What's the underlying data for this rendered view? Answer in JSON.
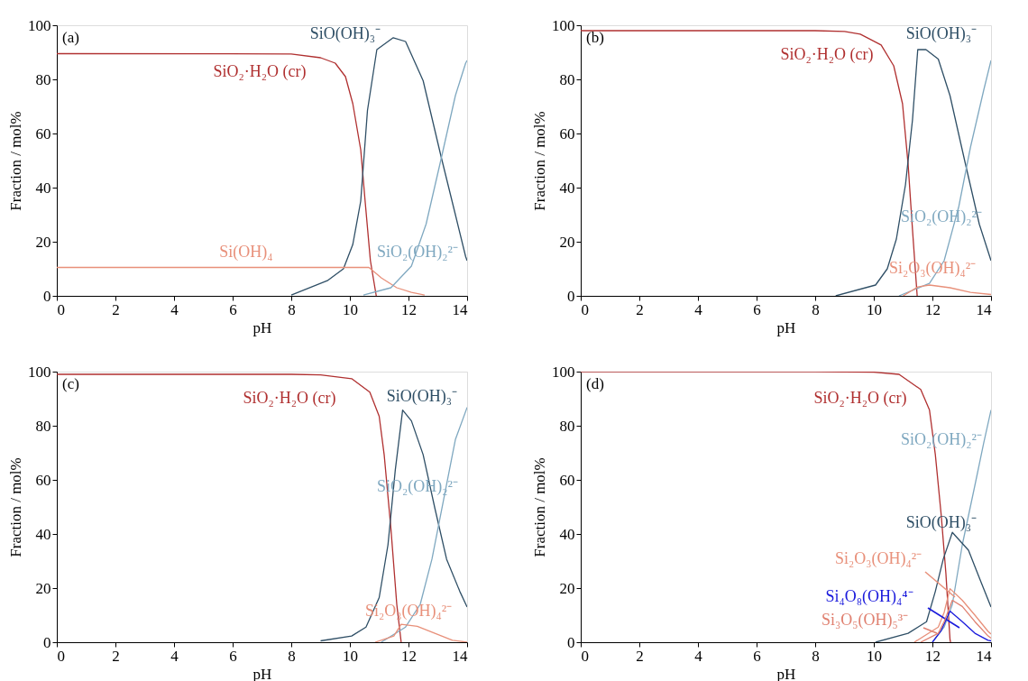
{
  "chart_data": [
    {
      "type": "line",
      "xlabel": "pH",
      "ylabel": "Fraction / mol%",
      "xlim": [
        0,
        14
      ],
      "ylim": [
        0,
        100
      ],
      "xticks": [
        0,
        2,
        4,
        6,
        8,
        10,
        12,
        14
      ],
      "yticks": [
        0,
        20,
        40,
        60,
        80,
        100
      ],
      "grid": false,
      "annotations": [
        "(a)"
      ],
      "series": [
        {
          "name": "SiO₂·H₂O (cr)",
          "color": "#b03030",
          "x": [
            0,
            8,
            9,
            9.5,
            9.85,
            10.1,
            10.37,
            10.52,
            10.7,
            10.9
          ],
          "values": [
            89.5,
            89.4,
            88,
            86,
            81,
            71,
            54,
            35,
            13,
            0
          ]
        },
        {
          "name": "SiO(OH)₃⁻",
          "color": "#2f4f66",
          "x": [
            8,
            9.23,
            9.78,
            10.1,
            10.37,
            10.6,
            10.92,
            11.48,
            11.9,
            12.5,
            13.1,
            13.6,
            13.95,
            14
          ],
          "values": [
            0.3,
            5.6,
            10,
            19,
            35,
            68.5,
            91,
            95.4,
            94,
            79.5,
            52,
            30,
            14.5,
            13
          ]
        },
        {
          "name": "Si(OH)₄",
          "color": "#e8907a",
          "x": [
            0,
            10.65,
            11.08,
            11.6,
            12.1,
            12.55
          ],
          "values": [
            10.5,
            10.5,
            6.6,
            3,
            1.3,
            0.3
          ]
        },
        {
          "name": "SiO₂(OH)₂²⁻",
          "color": "#7fa8c0",
          "x": [
            10.46,
            11.4,
            12.1,
            12.6,
            13.1,
            13.6,
            13.95,
            14
          ],
          "values": [
            0.3,
            3,
            11,
            26.5,
            50,
            74,
            86,
            87
          ]
        }
      ]
    },
    {
      "type": "line",
      "xlabel": "pH",
      "ylabel": "Fraction / mol%",
      "xlim": [
        0,
        14
      ],
      "ylim": [
        0,
        100
      ],
      "xticks": [
        0,
        2,
        4,
        6,
        8,
        10,
        12,
        14
      ],
      "yticks": [
        0,
        20,
        40,
        60,
        80,
        100
      ],
      "grid": false,
      "annotations": [
        "(b)"
      ],
      "series": [
        {
          "name": "SiO₂·H₂O (cr)",
          "color": "#b03030",
          "x": [
            0,
            8,
            9,
            9.54,
            10.25,
            10.68,
            10.98,
            11.17,
            11.32,
            11.48
          ],
          "values": [
            98,
            98,
            97.7,
            96.7,
            92.7,
            85,
            71,
            48.7,
            24.5,
            0
          ]
        },
        {
          "name": "SiO(OH)₃⁻",
          "color": "#2f4f66",
          "x": [
            8.7,
            10.06,
            10.46,
            10.77,
            11.08,
            11.32,
            11.5,
            11.78,
            12.2,
            12.6,
            13.1,
            13.6,
            14
          ],
          "values": [
            0,
            4,
            10,
            21,
            41,
            65,
            91,
            91,
            87.5,
            74,
            50,
            26.5,
            13
          ]
        },
        {
          "name": "SiO₂(OH)₂²⁻",
          "color": "#7fa8c0",
          "x": [
            10.86,
            11.9,
            12.4,
            12.9,
            13.3,
            13.75,
            14
          ],
          "values": [
            0,
            4.6,
            13,
            33,
            55,
            76,
            87
          ]
        },
        {
          "name": "Si₂O₃(OH)₄²⁻",
          "color": "#e8907a",
          "x": [
            11,
            11.5,
            11.9,
            12.6,
            13.3,
            14
          ],
          "values": [
            0,
            3.3,
            4,
            3,
            1.3,
            0.5
          ]
        }
      ]
    },
    {
      "type": "line",
      "xlabel": "pH",
      "ylabel": "Fraction / mol%",
      "xlim": [
        0,
        14
      ],
      "ylim": [
        0,
        100
      ],
      "xticks": [
        0,
        2,
        4,
        6,
        8,
        10,
        12,
        14
      ],
      "yticks": [
        0,
        20,
        40,
        60,
        80,
        100
      ],
      "grid": false,
      "annotations": [
        "(c)"
      ],
      "series": [
        {
          "name": "SiO₂·H₂O (cr)",
          "color": "#b03030",
          "x": [
            0,
            8,
            9,
            10.06,
            10.68,
            11,
            11.17,
            11.4,
            11.6,
            11.75
          ],
          "values": [
            99,
            99,
            98.8,
            97.4,
            92.4,
            83.5,
            69.3,
            42,
            14,
            0
          ]
        },
        {
          "name": "SiO(OH)₃⁻",
          "color": "#2f4f66",
          "x": [
            9,
            10.06,
            10.55,
            11,
            11.3,
            11.55,
            11.8,
            12.1,
            12.5,
            12.9,
            13.3,
            13.75,
            14
          ],
          "values": [
            0.5,
            2.3,
            5.6,
            16.5,
            36,
            63.7,
            85.8,
            81.8,
            69.3,
            49.5,
            30.7,
            18.8,
            13
          ]
        },
        {
          "name": "SiO₂(OH)₂²⁻",
          "color": "#7fa8c0",
          "x": [
            11.07,
            11.9,
            12.4,
            12.8,
            13.2,
            13.6,
            14
          ],
          "values": [
            0,
            5.6,
            14,
            30.7,
            52.8,
            74.9,
            86.8
          ]
        },
        {
          "name": "Si₂O₃(OH)₄²⁻",
          "color": "#e8907a",
          "x": [
            10.86,
            11.5,
            11.75,
            12.3,
            12.9,
            13.5,
            14
          ],
          "values": [
            0,
            2.3,
            6.6,
            5.9,
            3.3,
            0.7,
            0
          ]
        }
      ]
    },
    {
      "type": "line",
      "xlabel": "pH",
      "ylabel": "Fraction / mol%",
      "xlim": [
        0,
        14
      ],
      "ylim": [
        0,
        100
      ],
      "xticks": [
        0,
        2,
        4,
        6,
        8,
        10,
        12,
        14
      ],
      "yticks": [
        0,
        20,
        40,
        60,
        80,
        100
      ],
      "grid": false,
      "annotations": [
        "(d)"
      ],
      "series": [
        {
          "name": "SiO₂·H₂O (cr)",
          "color": "#b03030",
          "x": [
            0,
            8,
            10,
            10.86,
            11.6,
            11.9,
            12.1,
            12.3,
            12.46,
            12.6,
            12.62
          ],
          "values": [
            100,
            100,
            99.8,
            99,
            93.4,
            85.8,
            69.3,
            47,
            25.4,
            1,
            0
          ]
        },
        {
          "name": "SiO₂(OH)₂²⁻",
          "color": "#7fa8c0",
          "x": [
            12,
            12.4,
            12.68,
            13.02,
            13.45,
            13.75,
            14
          ],
          "values": [
            0,
            5.6,
            14,
            36,
            58,
            73.6,
            85.8
          ]
        },
        {
          "name": "SiO(OH)₃⁻",
          "color": "#2f4f66",
          "x": [
            10.06,
            11.17,
            11.8,
            12.1,
            12.37,
            12.68,
            13.23,
            13.63,
            14
          ],
          "values": [
            0,
            3.3,
            7.6,
            18.8,
            30.7,
            40.6,
            34,
            23,
            13
          ]
        },
        {
          "name": "Si₂O₃(OH)₄²⁻",
          "color": "#e8907a",
          "x": [
            11.38,
            12.2,
            12.4,
            12.6,
            13.02,
            13.45,
            13.9,
            14
          ],
          "values": [
            0,
            5.6,
            11,
            19.8,
            15.5,
            10,
            4,
            3
          ]
        },
        {
          "name": "Si₄O₈(OH)₄⁴⁻",
          "color": "#1a1adc",
          "x": [
            12,
            12.3,
            12.6,
            13.02,
            13.45,
            13.9,
            14
          ],
          "values": [
            0,
            4.3,
            11.5,
            7.6,
            3.3,
            0.7,
            0.5
          ]
        },
        {
          "name": "Si₃O₅(OH)₅³⁻",
          "color": "#e08070",
          "x": [
            11.6,
            12.2,
            12.4,
            12.68,
            13.02,
            13.45,
            13.9,
            14
          ],
          "values": [
            0,
            3.3,
            7.6,
            15.5,
            13.2,
            7.6,
            2.3,
            1.5
          ]
        }
      ]
    }
  ]
}
